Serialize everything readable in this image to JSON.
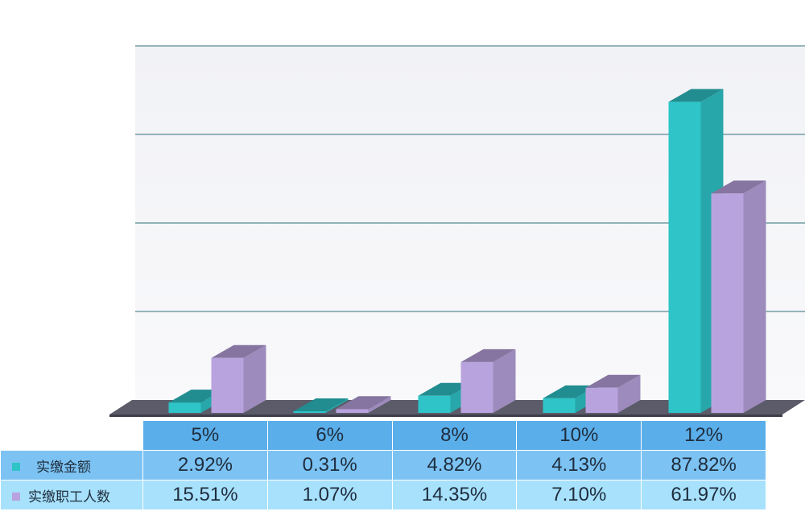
{
  "chart_data": {
    "type": "bar",
    "categories": [
      "5%",
      "6%",
      "8%",
      "10%",
      "12%"
    ],
    "series": [
      {
        "name": "实缴金额",
        "color": "#2ec4c8",
        "values": [
          2.92,
          0.31,
          4.82,
          4.13,
          87.82
        ],
        "labels": [
          "2.92%",
          "0.31%",
          "4.82%",
          "4.13%",
          "87.82%"
        ]
      },
      {
        "name": "实缴职工人数",
        "color": "#b9a3de",
        "values": [
          15.51,
          1.07,
          14.35,
          7.1,
          61.97
        ],
        "labels": [
          "15.51%",
          "1.07%",
          "14.35%",
          "7.10%",
          "61.97%"
        ]
      }
    ],
    "ylim": [
      0,
      100
    ],
    "grid": true,
    "style": "3d",
    "legend": "data table below chart"
  }
}
